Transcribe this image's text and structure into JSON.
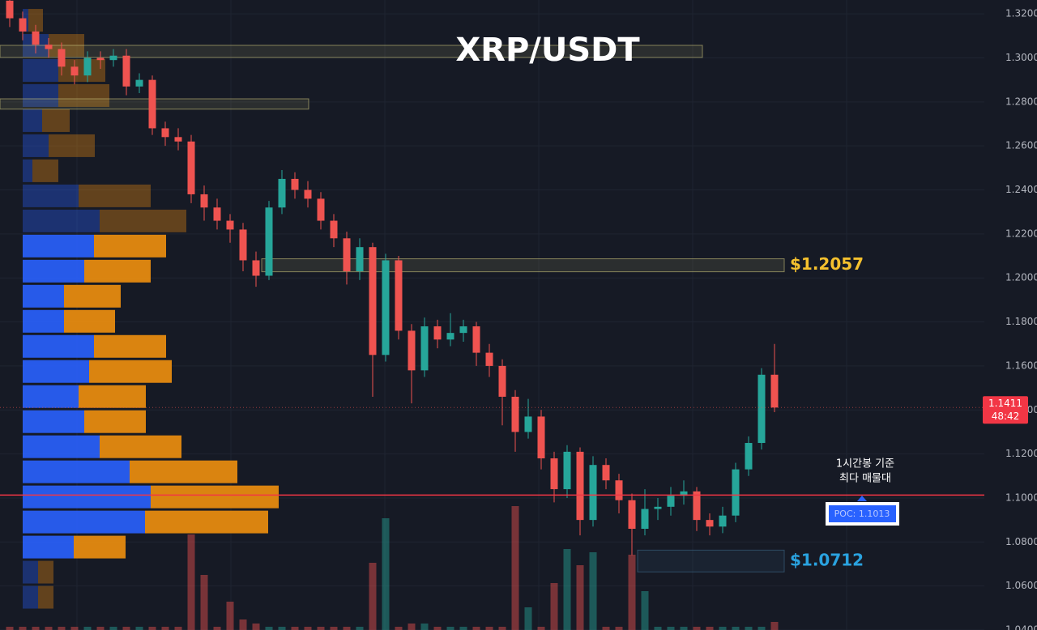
{
  "chart_data": {
    "type": "candlestick",
    "title": "XRP/USDT",
    "open": [
      1.326,
      1.318,
      1.312,
      1.306,
      1.304,
      1.296,
      1.292,
      1.3,
      1.299,
      1.301,
      1.287,
      1.29,
      1.268,
      1.264,
      1.262,
      1.238,
      1.232,
      1.226,
      1.222,
      1.208,
      1.201,
      1.232,
      1.245,
      1.24,
      1.236,
      1.226,
      1.218,
      1.203,
      1.214,
      1.165,
      1.208,
      1.176,
      1.158,
      1.178,
      1.172,
      1.175,
      1.178,
      1.166,
      1.16,
      1.146,
      1.13,
      1.137,
      1.118,
      1.104,
      1.121,
      1.09,
      1.115,
      1.108,
      1.099,
      1.086,
      1.095,
      1.096,
      1.101,
      1.103,
      1.09,
      1.087,
      1.092,
      1.113,
      1.125,
      1.156
    ],
    "high": [
      1.33,
      1.321,
      1.315,
      1.309,
      1.307,
      1.299,
      1.303,
      1.303,
      1.304,
      1.304,
      1.293,
      1.292,
      1.271,
      1.268,
      1.265,
      1.242,
      1.236,
      1.229,
      1.225,
      1.212,
      1.235,
      1.249,
      1.248,
      1.244,
      1.239,
      1.229,
      1.221,
      1.218,
      1.216,
      1.211,
      1.21,
      1.179,
      1.182,
      1.181,
      1.184,
      1.181,
      1.18,
      1.17,
      1.163,
      1.149,
      1.145,
      1.14,
      1.121,
      1.124,
      1.123,
      1.119,
      1.118,
      1.111,
      1.102,
      1.104,
      1.1,
      1.105,
      1.108,
      1.105,
      1.093,
      1.096,
      1.116,
      1.128,
      1.159,
      1.17
    ],
    "low": [
      1.314,
      1.308,
      1.302,
      1.3,
      1.292,
      1.288,
      1.289,
      1.295,
      1.296,
      1.283,
      1.284,
      1.265,
      1.26,
      1.258,
      1.234,
      1.226,
      1.222,
      1.216,
      1.203,
      1.196,
      1.199,
      1.229,
      1.236,
      1.232,
      1.222,
      1.214,
      1.197,
      1.199,
      1.146,
      1.162,
      1.172,
      1.143,
      1.155,
      1.168,
      1.169,
      1.171,
      1.16,
      1.155,
      1.133,
      1.121,
      1.127,
      1.113,
      1.098,
      1.1,
      1.083,
      1.087,
      1.104,
      1.093,
      1.074,
      1.083,
      1.09,
      1.092,
      1.097,
      1.085,
      1.083,
      1.084,
      1.089,
      1.11,
      1.122,
      1.139
    ],
    "close": [
      1.318,
      1.312,
      1.306,
      1.304,
      1.296,
      1.292,
      1.3,
      1.299,
      1.301,
      1.287,
      1.29,
      1.268,
      1.264,
      1.262,
      1.238,
      1.232,
      1.226,
      1.222,
      1.208,
      1.201,
      1.232,
      1.245,
      1.24,
      1.236,
      1.226,
      1.218,
      1.203,
      1.214,
      1.165,
      1.208,
      1.176,
      1.158,
      1.178,
      1.172,
      1.175,
      1.178,
      1.166,
      1.16,
      1.146,
      1.13,
      1.137,
      1.118,
      1.104,
      1.121,
      1.09,
      1.115,
      1.108,
      1.099,
      1.086,
      1.095,
      1.096,
      1.101,
      1.103,
      1.09,
      1.087,
      1.092,
      1.113,
      1.125,
      1.156,
      1.1411
    ],
    "volume": [
      4,
      4,
      4,
      4,
      4,
      4,
      4,
      4,
      4,
      4,
      4,
      4,
      4,
      4,
      118,
      68,
      4,
      35,
      13,
      8,
      4,
      4,
      4,
      4,
      4,
      4,
      4,
      4,
      83,
      138,
      4,
      8,
      8,
      4,
      4,
      4,
      4,
      4,
      4,
      153,
      28,
      4,
      58,
      100,
      80,
      96,
      4,
      4,
      93,
      48,
      4,
      4,
      4,
      4,
      4,
      4,
      4,
      4,
      4,
      10
    ],
    "up_color": "#26a69a",
    "down_color": "#ef5350",
    "ylim": [
      1.04,
      1.3263
    ],
    "yticks": [
      {
        "value": 1.32,
        "label": "1.3200"
      },
      {
        "value": 1.3,
        "label": "1.3000"
      },
      {
        "value": 1.28,
        "label": "1.2800"
      },
      {
        "value": 1.26,
        "label": "1.2600"
      },
      {
        "value": 1.24,
        "label": "1.2400"
      },
      {
        "value": 1.22,
        "label": "1.2200"
      },
      {
        "value": 1.2,
        "label": "1.2000"
      },
      {
        "value": 1.18,
        "label": "1.1800"
      },
      {
        "value": 1.16,
        "label": "1.1600"
      },
      {
        "value": 1.14,
        "label": "1.1400"
      },
      {
        "value": 1.12,
        "label": "1.1200"
      },
      {
        "value": 1.1,
        "label": "1.1000"
      },
      {
        "value": 1.08,
        "label": "1.0800"
      },
      {
        "value": 1.06,
        "label": "1.0600"
      },
      {
        "value": 1.04,
        "label": "1.0400"
      }
    ],
    "grid": true,
    "volume_profile": {
      "levels": [
        1.3226,
        1.3112,
        1.2998,
        1.2884,
        1.277,
        1.2656,
        1.2542,
        1.2428,
        1.2314,
        1.22,
        1.2086,
        1.1972,
        1.1858,
        1.1744,
        1.163,
        1.1516,
        1.1402,
        1.1288,
        1.1174,
        1.106,
        1.0946,
        1.0832,
        1.0718,
        1.0604
      ],
      "buy": [
        7,
        32,
        44,
        44,
        24,
        32,
        12,
        69,
        95,
        88,
        76,
        51,
        51,
        88,
        82,
        69,
        76,
        95,
        132,
        158,
        151,
        63,
        19,
        19
      ],
      "sell": [
        18,
        44,
        58,
        63,
        34,
        57,
        32,
        89,
        107,
        89,
        82,
        70,
        63,
        89,
        102,
        83,
        76,
        101,
        133,
        158,
        152,
        64,
        19,
        19
      ],
      "value_area": [
        1.0718,
        1.22
      ],
      "buy_color": "#2962ff",
      "sell_color": "#f0900e"
    },
    "zones": [
      {
        "low": 1.3002,
        "high": 1.3057,
        "color": "#c9c27a"
      },
      {
        "low": 1.2767,
        "high": 1.2814,
        "color": "#c9c27a"
      },
      {
        "low": 1.2028,
        "high": 1.2087,
        "color": "#c9c27a",
        "value": 1.2057,
        "label": "$1.2057",
        "label_color": "#f5c12e"
      },
      {
        "low": 1.0664,
        "high": 1.0763,
        "color": "#3d6a8a",
        "value": 1.0712,
        "label": "$1.0712",
        "label_color": "#2aa3e0"
      }
    ],
    "poc": {
      "value": 1.1013,
      "label": "POC: 1.1013",
      "color": "#f23645"
    },
    "annotation": [
      "1시간봉 기준",
      "최다 매물대"
    ],
    "countdown": "48:42"
  }
}
